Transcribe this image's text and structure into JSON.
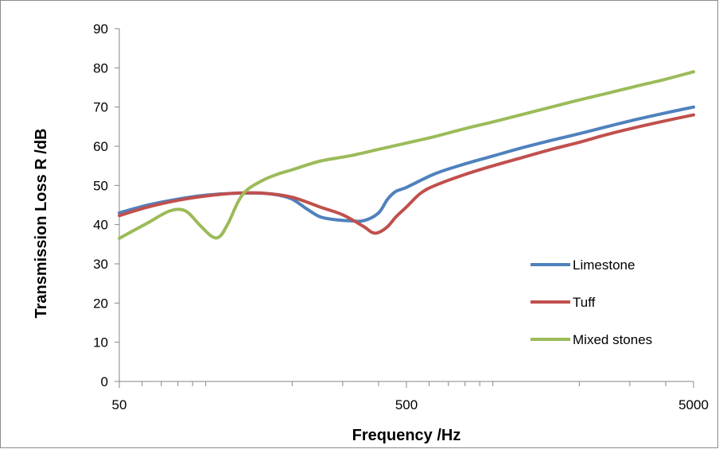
{
  "chart_data": {
    "type": "line",
    "title": "",
    "xlabel": "Frequency /Hz",
    "ylabel": "Transmission Loss R /dB",
    "x_scale": "log",
    "xlim": [
      50,
      5000
    ],
    "ylim": [
      0,
      90
    ],
    "x_ticks": [
      "50",
      "500",
      "5000"
    ],
    "y_ticks": [
      "0",
      "10",
      "20",
      "30",
      "40",
      "50",
      "60",
      "70",
      "80",
      "90"
    ],
    "grid": false,
    "legend_position": "right",
    "series": [
      {
        "name": "Limestone",
        "color": "#4f81bd",
        "x": [
          50,
          63,
          80,
          100,
          125,
          160,
          180,
          200,
          225,
          250,
          280,
          315,
          355,
          400,
          430,
          460,
          500,
          630,
          800,
          1000,
          1250,
          1600,
          2000,
          2500,
          3150,
          4000,
          5000
        ],
        "y": [
          43,
          45,
          46.5,
          47.5,
          48,
          48,
          47.5,
          46.5,
          44,
          42,
          41.3,
          41,
          41,
          43,
          46.5,
          48.5,
          49.5,
          53,
          55.5,
          57.5,
          59.5,
          61.5,
          63.2,
          65,
          66.8,
          68.5,
          70
        ]
      },
      {
        "name": "Tuff",
        "color": "#c0504d",
        "x": [
          50,
          63,
          80,
          100,
          125,
          160,
          200,
          250,
          300,
          355,
          380,
          400,
          430,
          460,
          500,
          560,
          630,
          800,
          1000,
          1250,
          1600,
          2000,
          2500,
          3150,
          4000,
          5000
        ],
        "y": [
          42.3,
          44.5,
          46.2,
          47.3,
          48,
          48,
          47,
          44.5,
          42.5,
          39.5,
          38,
          38,
          39.5,
          42,
          44.5,
          48,
          50,
          52.8,
          55,
          57,
          59.2,
          61,
          63,
          64.8,
          66.5,
          68
        ]
      },
      {
        "name": "Mixed stones",
        "color": "#9bbb59",
        "x": [
          50,
          63,
          75,
          85,
          95,
          105,
          112,
          120,
          130,
          140,
          160,
          180,
          200,
          250,
          315,
          400,
          500,
          630,
          800,
          1000,
          1250,
          1600,
          2000,
          2500,
          3150,
          4000,
          5000
        ],
        "y": [
          36.5,
          40.5,
          43.5,
          43.5,
          40,
          37,
          37,
          40.5,
          46,
          49,
          51.5,
          53,
          54,
          56.2,
          57.5,
          59.2,
          60.8,
          62.5,
          64.5,
          66.2,
          68,
          70,
          71.8,
          73.5,
          75.3,
          77.1,
          79
        ]
      }
    ]
  }
}
